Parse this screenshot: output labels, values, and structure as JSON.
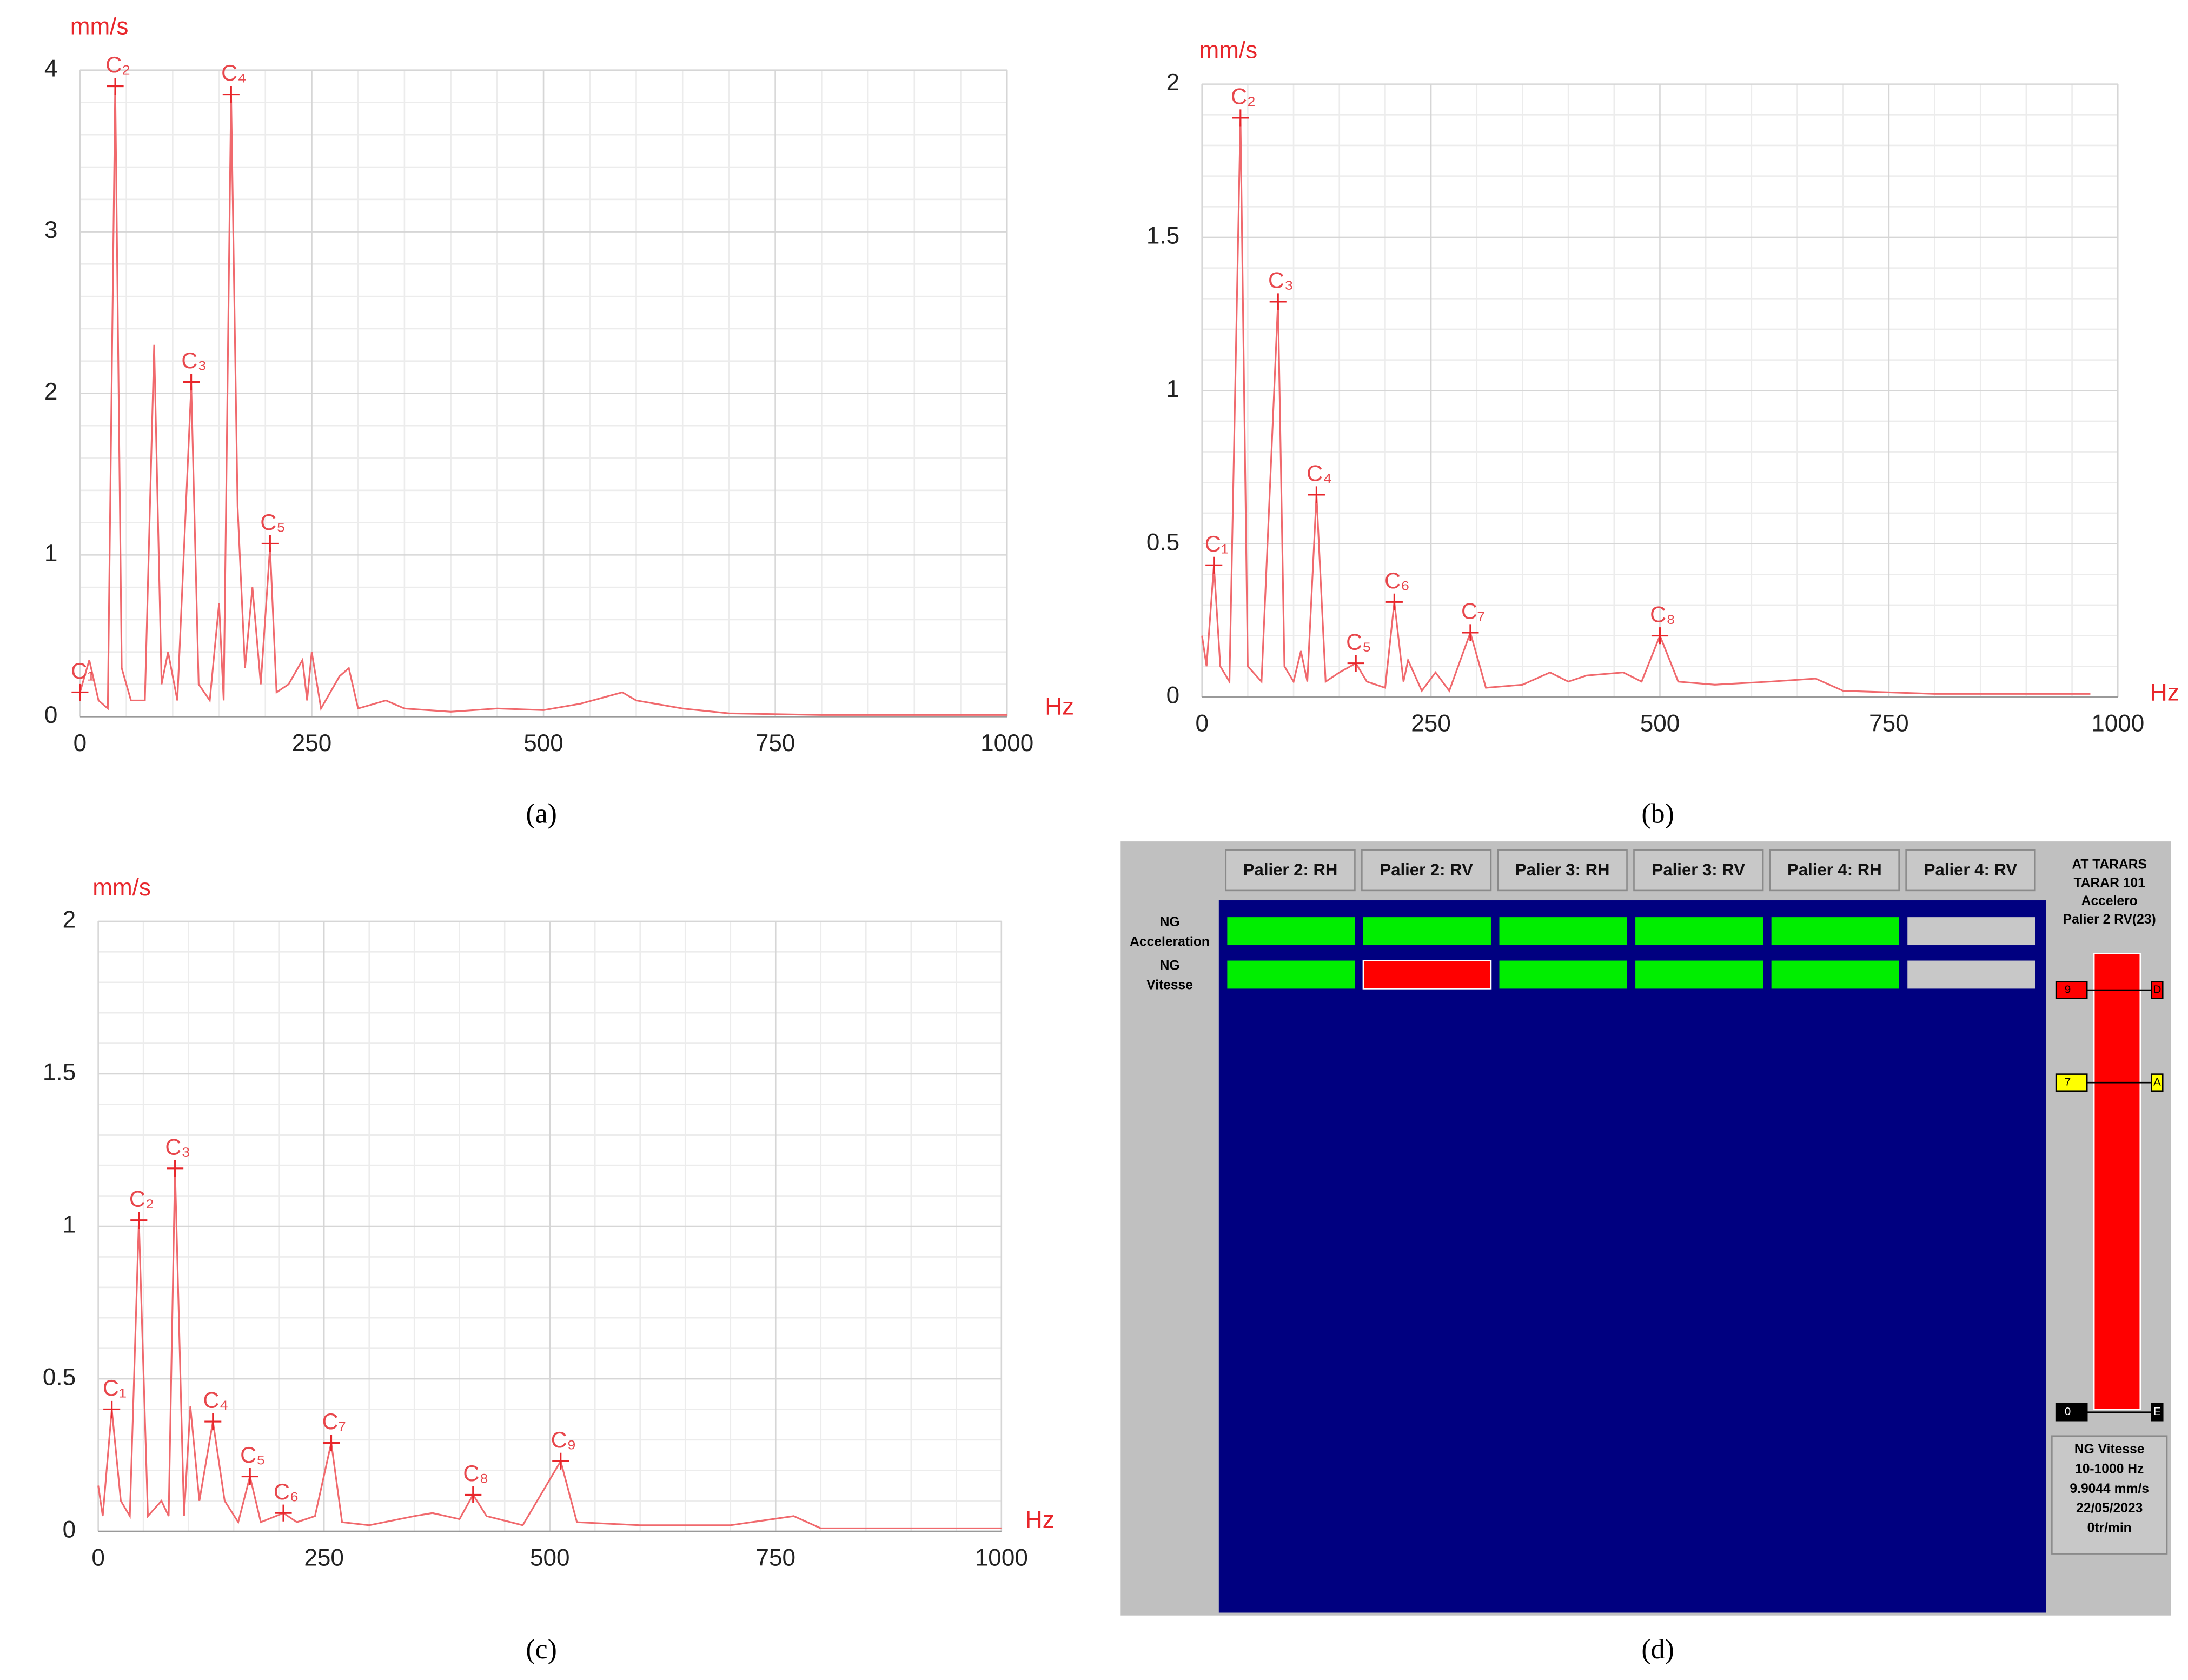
{
  "chart_data": [
    {
      "type": "line",
      "y_label": "mm/s",
      "x_label": "Hz",
      "caption": "(a)",
      "color": "#f0696d",
      "grid": true,
      "xlim": [
        0,
        1000
      ],
      "xticks": [
        0,
        250,
        500,
        750,
        1000
      ],
      "ylim": [
        0,
        4
      ],
      "yticks": [
        0,
        1,
        2,
        3,
        4
      ],
      "x": [
        0,
        10,
        20,
        30,
        38,
        45,
        55,
        70,
        80,
        88,
        95,
        105,
        120,
        128,
        140,
        150,
        155,
        163,
        170,
        178,
        186,
        195,
        205,
        212,
        225,
        240,
        245,
        250,
        260,
        280,
        290,
        300,
        330,
        350,
        400,
        450,
        500,
        540,
        585,
        600,
        650,
        700,
        800,
        1000
      ],
      "values": [
        0.15,
        0.35,
        0.1,
        0.05,
        3.9,
        0.3,
        0.1,
        0.1,
        2.3,
        0.2,
        0.4,
        0.1,
        2.05,
        0.2,
        0.1,
        0.7,
        0.1,
        3.85,
        1.3,
        0.3,
        0.8,
        0.2,
        1.05,
        0.15,
        0.2,
        0.35,
        0.1,
        0.4,
        0.05,
        0.25,
        0.3,
        0.05,
        0.1,
        0.05,
        0.03,
        0.05,
        0.04,
        0.08,
        0.15,
        0.1,
        0.05,
        0.02,
        0.01,
        0.01
      ],
      "annotations": [
        {
          "text": "C₁",
          "x": 0,
          "y": 0.15
        },
        {
          "text": "C₂",
          "x": 38,
          "y": 3.9
        },
        {
          "text": "C₃",
          "x": 120,
          "y": 2.07
        },
        {
          "text": "C₄",
          "x": 163,
          "y": 3.85
        },
        {
          "text": "C₅",
          "x": 205,
          "y": 1.07
        }
      ]
    },
    {
      "type": "line",
      "y_label": "mm/s",
      "x_label": "Hz",
      "caption": "(b)",
      "color": "#f0696d",
      "grid": true,
      "xlim": [
        0,
        1000
      ],
      "xticks": [
        0,
        250,
        500,
        750,
        1000
      ],
      "ylim": [
        0,
        2
      ],
      "yticks": [
        0,
        0.5,
        1,
        1.5,
        2
      ],
      "x": [
        0,
        5,
        13,
        20,
        30,
        42,
        50,
        65,
        83,
        90,
        100,
        108,
        115,
        125,
        135,
        150,
        168,
        180,
        200,
        210,
        220,
        225,
        240,
        255,
        270,
        293,
        310,
        350,
        380,
        400,
        420,
        460,
        480,
        500,
        520,
        560,
        620,
        670,
        700,
        800,
        900,
        970
      ],
      "values": [
        0.2,
        0.1,
        0.43,
        0.1,
        0.05,
        1.89,
        0.1,
        0.05,
        1.29,
        0.1,
        0.05,
        0.15,
        0.05,
        0.66,
        0.05,
        0.08,
        0.11,
        0.05,
        0.03,
        0.31,
        0.05,
        0.12,
        0.02,
        0.08,
        0.02,
        0.21,
        0.03,
        0.04,
        0.08,
        0.05,
        0.07,
        0.08,
        0.05,
        0.2,
        0.05,
        0.04,
        0.05,
        0.06,
        0.02,
        0.01,
        0.01,
        0.01
      ],
      "annotations": [
        {
          "text": "C₁",
          "x": 13,
          "y": 0.43
        },
        {
          "text": "C₂",
          "x": 42,
          "y": 1.89
        },
        {
          "text": "C₃",
          "x": 83,
          "y": 1.29
        },
        {
          "text": "C₄",
          "x": 125,
          "y": 0.66
        },
        {
          "text": "C₅",
          "x": 168,
          "y": 0.11
        },
        {
          "text": "C₆",
          "x": 210,
          "y": 0.31
        },
        {
          "text": "C₇",
          "x": 293,
          "y": 0.21
        },
        {
          "text": "C₈",
          "x": 500,
          "y": 0.2
        }
      ]
    },
    {
      "type": "line",
      "y_label": "mm/s",
      "x_label": "Hz",
      "caption": "(c)",
      "color": "#f0696d",
      "grid": true,
      "xlim": [
        0,
        1000
      ],
      "xticks": [
        0,
        250,
        500,
        750,
        1000
      ],
      "ylim": [
        0,
        2
      ],
      "yticks": [
        0,
        0.5,
        1,
        1.5,
        2
      ],
      "x": [
        0,
        5,
        15,
        25,
        35,
        45,
        55,
        70,
        78,
        85,
        95,
        102,
        112,
        127,
        140,
        155,
        168,
        180,
        205,
        220,
        240,
        258,
        270,
        300,
        350,
        370,
        400,
        415,
        430,
        470,
        512,
        530,
        600,
        700,
        770,
        800,
        900,
        1000
      ],
      "values": [
        0.15,
        0.05,
        0.4,
        0.1,
        0.05,
        1.02,
        0.05,
        0.1,
        0.05,
        1.19,
        0.05,
        0.41,
        0.1,
        0.36,
        0.1,
        0.03,
        0.18,
        0.03,
        0.06,
        0.03,
        0.05,
        0.29,
        0.03,
        0.02,
        0.05,
        0.06,
        0.04,
        0.12,
        0.05,
        0.02,
        0.23,
        0.03,
        0.02,
        0.02,
        0.05,
        0.01,
        0.01,
        0.01
      ],
      "annotations": [
        {
          "text": "C₁",
          "x": 15,
          "y": 0.4
        },
        {
          "text": "C₂",
          "x": 45,
          "y": 1.02
        },
        {
          "text": "C₃",
          "x": 85,
          "y": 1.19
        },
        {
          "text": "C₄",
          "x": 127,
          "y": 0.36
        },
        {
          "text": "C₅",
          "x": 168,
          "y": 0.18
        },
        {
          "text": "C₆",
          "x": 205,
          "y": 0.06
        },
        {
          "text": "C₇",
          "x": 258,
          "y": 0.29
        },
        {
          "text": "C₈",
          "x": 415,
          "y": 0.12
        },
        {
          "text": "C₉",
          "x": 512,
          "y": 0.23
        }
      ]
    }
  ],
  "panel_d": {
    "caption": "(d)",
    "columns": [
      "Palier 2:  RH",
      "Palier 2:  RV",
      "Palier 3:  RH",
      "Palier 3:  RV",
      "Palier 4:  RH",
      "Palier 4:  RV"
    ],
    "rows": [
      {
        "label": [
          "NG",
          "Acceleration"
        ],
        "cells": [
          "#00ee00",
          "#00ee00",
          "#00ee00",
          "#00ee00",
          "#00ee00",
          "#c8c8c8"
        ]
      },
      {
        "label": [
          "NG",
          "Vitesse"
        ],
        "cells": [
          "#00ee00",
          "#ff0000",
          "#00ee00",
          "#00ee00",
          "#00ee00",
          "#c8c8c8"
        ]
      }
    ],
    "side_title": [
      "AT TARARS",
      "TARAR 101",
      "Accelero",
      "Palier 2 RV(23)"
    ],
    "gauge_color": "#ff0000",
    "markers": [
      {
        "left": "9",
        "right": "D",
        "color": "#ff0000"
      },
      {
        "left": "7",
        "right": "A",
        "color": "#ffff00"
      },
      {
        "left": "0",
        "right": "E",
        "color": "#000000"
      }
    ],
    "info": [
      "NG Vitesse",
      "10-1000 Hz",
      "9.9044 mm/s",
      "22/05/2023",
      "0tr/min"
    ]
  }
}
